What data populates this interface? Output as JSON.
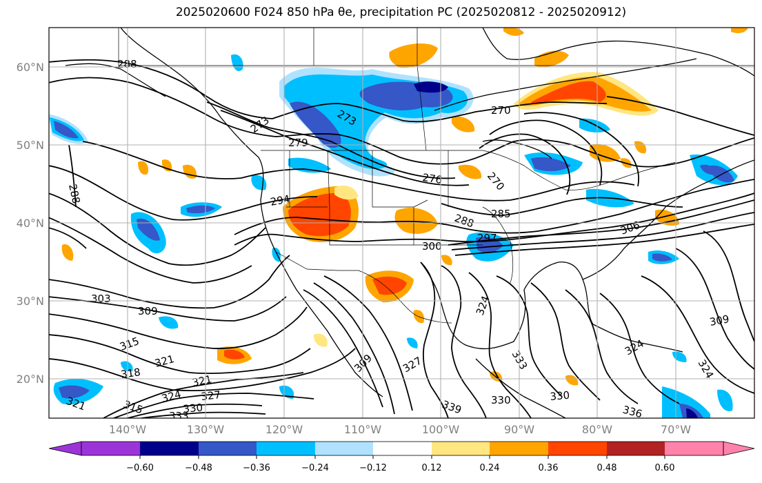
{
  "title": "2025020600 F024 850 hPa θe, precipitation PC (2025020812 - 2025020912)",
  "lat_labels": [
    "60°N",
    "50°N",
    "40°N",
    "30°N",
    "20°N"
  ],
  "lon_labels": [
    "140°W",
    "130°W",
    "120°W",
    "110°W",
    "100°W",
    "90°W",
    "80°W",
    "70°W"
  ],
  "colorbar": {
    "ticks": [
      "−0.60",
      "−0.48",
      "−0.36",
      "−0.24",
      "−0.12",
      "0.12",
      "0.24",
      "0.36",
      "0.48",
      "0.60"
    ],
    "colors": [
      "#9b35d8",
      "#00008b",
      "#3557c8",
      "#00bfff",
      "#b0e2ff",
      "#ffffff",
      "#ffe680",
      "#ffa500",
      "#ff4500",
      "#b22222",
      "#ff82ab"
    ]
  },
  "contour_labels": [
    "288",
    "288",
    "273",
    "273",
    "270",
    "279",
    "276",
    "270",
    "294",
    "288",
    "285",
    "306",
    "297",
    "300",
    "303",
    "309",
    "309",
    "315",
    "318",
    "321",
    "321",
    "327",
    "324",
    "330",
    "333",
    "315",
    "321",
    "309",
    "327",
    "324",
    "330",
    "330",
    "336",
    "339",
    "324",
    "324",
    "333"
  ],
  "colors": {
    "frame": "#000000",
    "gridline": "#b0b0b0",
    "tick_label": "#808080"
  }
}
